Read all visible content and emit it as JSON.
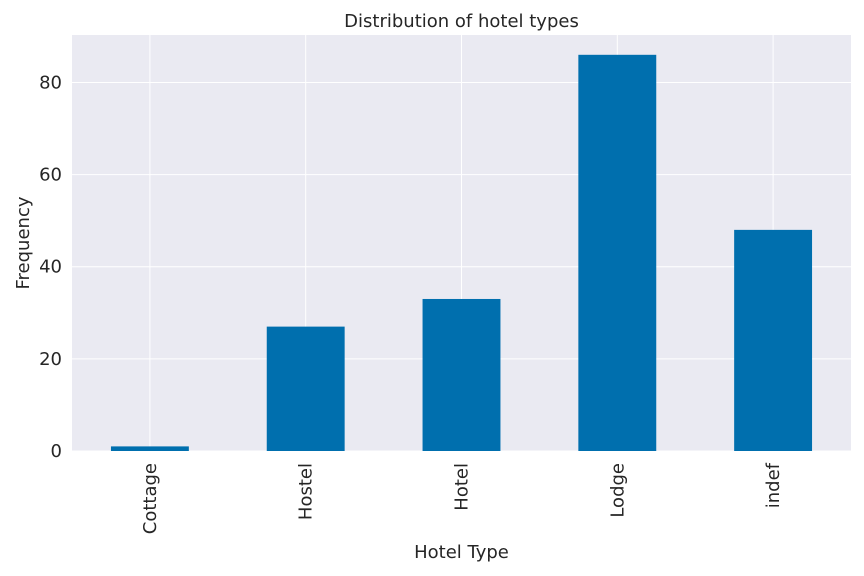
{
  "chart_data": {
    "type": "bar",
    "title": "Distribution of hotel types",
    "xlabel": "Hotel Type",
    "ylabel": "Frequency",
    "categories": [
      "Cottage",
      "Hostel",
      "Hotel",
      "Lodge",
      "indef"
    ],
    "values": [
      1,
      27,
      33,
      86,
      48
    ],
    "ylim": [
      0,
      90.3
    ],
    "yticks": [
      0,
      20,
      40,
      60,
      80
    ],
    "grid": true,
    "colors": {
      "bar": "#006fae",
      "plot_background": "#eaeaf2",
      "grid": "#ffffff",
      "text": "#262626"
    }
  }
}
